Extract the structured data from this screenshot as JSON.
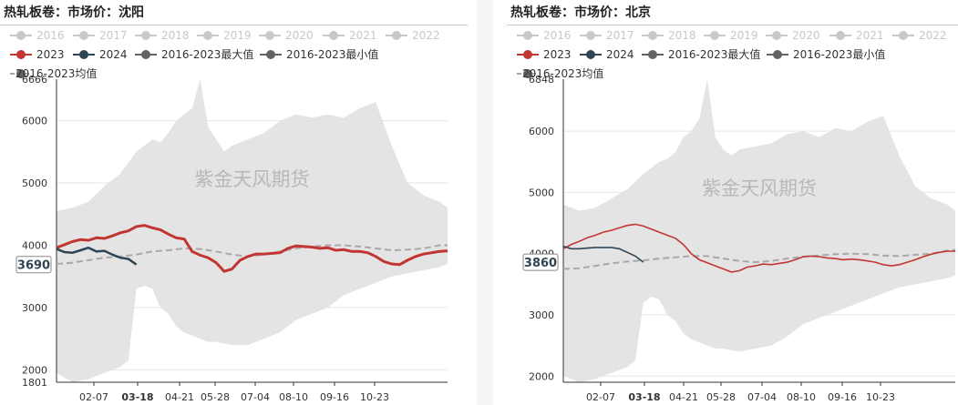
{
  "chart_data": [
    {
      "type": "line",
      "title": "热轧板卷：市场价：沈阳",
      "watermark": "紫金天风期货",
      "ylim": [
        1801,
        6666
      ],
      "y_ticks": [
        "2000",
        "3000",
        "4000",
        "5000",
        "6000"
      ],
      "y_min_label": "1801",
      "y_max_label": "6666",
      "x_ticks": [
        "02-07",
        "03-18",
        "04-21",
        "05-28",
        "07-04",
        "08-10",
        "09-16",
        "10-23"
      ],
      "highlight_x": "03-18",
      "current_value_label": "3690",
      "legend": [
        "2016",
        "2017",
        "2018",
        "2019",
        "2020",
        "2021",
        "2022",
        "2023",
        "2024",
        "2016-2023最大值",
        "2016-2023最小值",
        "2016-2023均值"
      ],
      "colors": {
        "inactive": "#c8c8c8",
        "y2023": "#c23531",
        "y2024": "#2f4554",
        "maxmin": "#636363",
        "band": "#e4e4e4",
        "mean": "#a8a8a8"
      },
      "series": [
        {
          "name": "2023",
          "x": [
            1,
            2,
            3,
            4,
            5,
            6,
            7,
            8,
            9,
            10,
            11,
            12,
            13,
            14,
            15,
            16,
            17,
            18,
            19,
            20,
            21,
            22,
            23,
            24,
            25,
            26,
            27,
            28,
            29,
            30,
            31,
            32,
            33,
            34,
            35,
            36,
            37,
            38,
            39,
            40,
            41,
            42,
            43,
            44,
            45,
            46,
            47,
            48,
            49,
            50
          ],
          "values": [
            3960,
            4010,
            4060,
            4090,
            4080,
            4120,
            4110,
            4150,
            4200,
            4230,
            4300,
            4320,
            4280,
            4250,
            4180,
            4120,
            4100,
            3900,
            3840,
            3800,
            3720,
            3580,
            3620,
            3760,
            3820,
            3860,
            3860,
            3870,
            3880,
            3950,
            3990,
            3980,
            3970,
            3950,
            3960,
            3920,
            3930,
            3900,
            3900,
            3880,
            3820,
            3740,
            3700,
            3690,
            3760,
            3820,
            3860,
            3880,
            3900,
            3910
          ]
        },
        {
          "name": "2024",
          "x": [
            1,
            2,
            3,
            4,
            5,
            6,
            7,
            8,
            9,
            10,
            11
          ],
          "values": [
            3940,
            3890,
            3880,
            3920,
            3960,
            3900,
            3910,
            3850,
            3800,
            3780,
            3690
          ]
        },
        {
          "name": "2016-2023最大值",
          "x": [
            1,
            3,
            5,
            7,
            9,
            11,
            12,
            13,
            14,
            15,
            16,
            17,
            18,
            19,
            20,
            21,
            22,
            23,
            25,
            27,
            29,
            31,
            33,
            35,
            37,
            39,
            41,
            43,
            45,
            47,
            49,
            50
          ],
          "values": [
            4550,
            4600,
            4700,
            4950,
            5150,
            5500,
            5600,
            5700,
            5650,
            5800,
            6000,
            6100,
            6200,
            6666,
            5900,
            5700,
            5500,
            5600,
            5700,
            5800,
            6000,
            6100,
            6050,
            6100,
            6050,
            6200,
            6300,
            5600,
            5000,
            4800,
            4700,
            4600
          ]
        },
        {
          "name": "2016-2023最小值",
          "x": [
            1,
            3,
            5,
            7,
            9,
            10,
            11,
            12,
            13,
            14,
            15,
            16,
            17,
            18,
            19,
            20,
            21,
            23,
            25,
            27,
            29,
            31,
            33,
            35,
            37,
            39,
            41,
            43,
            45,
            47,
            49,
            50
          ],
          "values": [
            1950,
            1801,
            1850,
            1950,
            2050,
            2150,
            3300,
            3350,
            3300,
            3000,
            2900,
            2700,
            2600,
            2550,
            2500,
            2450,
            2450,
            2400,
            2400,
            2500,
            2600,
            2800,
            2900,
            3000,
            3200,
            3300,
            3400,
            3500,
            3550,
            3600,
            3650,
            3700
          ]
        },
        {
          "name": "2016-2023均值",
          "x": [
            1,
            3,
            5,
            7,
            9,
            11,
            13,
            15,
            17,
            19,
            21,
            23,
            25,
            27,
            29,
            31,
            33,
            35,
            37,
            39,
            41,
            43,
            45,
            47,
            49,
            50
          ],
          "values": [
            3700,
            3720,
            3760,
            3800,
            3820,
            3850,
            3900,
            3920,
            3950,
            3940,
            3900,
            3850,
            3820,
            3850,
            3900,
            3950,
            3980,
            4000,
            4000,
            3980,
            3950,
            3920,
            3930,
            3950,
            4000,
            4000
          ]
        }
      ]
    },
    {
      "type": "line",
      "title": "热轧板卷：市场价：北京",
      "watermark": "紫金天风期货",
      "ylim": [
        1900,
        6848
      ],
      "y_ticks": [
        "2000",
        "3000",
        "4000",
        "5000",
        "6000"
      ],
      "y_min_label": "",
      "y_max_label": "6848",
      "x_ticks": [
        "02-07",
        "03-18",
        "04-21",
        "05-28",
        "07-04",
        "08-10",
        "09-16",
        "10-23"
      ],
      "highlight_x": "03-18",
      "current_value_label": "3860",
      "legend": [
        "2016",
        "2017",
        "2018",
        "2019",
        "2020",
        "2021",
        "2022",
        "2023",
        "2024",
        "2016-2023最大值",
        "2016-2023最小值",
        "2016-2023均值"
      ],
      "colors": {
        "inactive": "#c8c8c8",
        "y2023": "#c23531",
        "y2024": "#2f4554",
        "maxmin": "#636363",
        "band": "#e4e4e4",
        "mean": "#a8a8a8"
      },
      "series": [
        {
          "name": "2023",
          "x": [
            1,
            2,
            3,
            4,
            5,
            6,
            7,
            8,
            9,
            10,
            11,
            12,
            13,
            14,
            15,
            16,
            17,
            18,
            19,
            20,
            21,
            22,
            23,
            24,
            25,
            26,
            27,
            28,
            29,
            30,
            31,
            32,
            33,
            34,
            35,
            36,
            37,
            38,
            39,
            40,
            41,
            42,
            43,
            44,
            45,
            46,
            47,
            48,
            49,
            50
          ],
          "values": [
            4080,
            4150,
            4200,
            4260,
            4300,
            4350,
            4380,
            4420,
            4460,
            4480,
            4450,
            4400,
            4350,
            4300,
            4250,
            4150,
            4000,
            3900,
            3850,
            3800,
            3750,
            3700,
            3720,
            3780,
            3800,
            3830,
            3820,
            3840,
            3860,
            3900,
            3950,
            3960,
            3950,
            3930,
            3920,
            3900,
            3910,
            3900,
            3880,
            3860,
            3820,
            3800,
            3820,
            3860,
            3900,
            3950,
            3990,
            4020,
            4040,
            4040
          ]
        },
        {
          "name": "2024",
          "x": [
            1,
            2,
            3,
            4,
            5,
            6,
            7,
            8,
            9,
            10,
            11
          ],
          "values": [
            4120,
            4080,
            4080,
            4090,
            4100,
            4100,
            4100,
            4080,
            4020,
            3960,
            3860
          ]
        },
        {
          "name": "2016-2023最大值",
          "x": [
            1,
            3,
            5,
            7,
            9,
            11,
            12,
            13,
            14,
            15,
            16,
            17,
            18,
            19,
            20,
            21,
            22,
            23,
            25,
            27,
            29,
            31,
            33,
            35,
            37,
            39,
            41,
            43,
            45,
            47,
            49,
            50
          ],
          "values": [
            4800,
            4700,
            4750,
            4900,
            5050,
            5300,
            5400,
            5500,
            5550,
            5650,
            5900,
            6000,
            6200,
            6848,
            5900,
            5700,
            5600,
            5700,
            5750,
            5800,
            5950,
            6000,
            5900,
            6050,
            6000,
            6150,
            6250,
            5600,
            5100,
            4900,
            4800,
            4700
          ]
        },
        {
          "name": "2016-2023最小值",
          "x": [
            1,
            3,
            5,
            7,
            9,
            10,
            11,
            12,
            13,
            14,
            15,
            16,
            17,
            18,
            19,
            20,
            21,
            23,
            25,
            27,
            29,
            31,
            33,
            35,
            37,
            39,
            41,
            43,
            45,
            47,
            49,
            50
          ],
          "values": [
            2000,
            1900,
            1950,
            2050,
            2150,
            2250,
            3200,
            3300,
            3250,
            3000,
            2900,
            2700,
            2600,
            2550,
            2500,
            2450,
            2450,
            2400,
            2450,
            2500,
            2650,
            2850,
            2950,
            3050,
            3150,
            3250,
            3350,
            3450,
            3500,
            3550,
            3600,
            3650
          ]
        },
        {
          "name": "2016-2023均值",
          "x": [
            1,
            3,
            5,
            7,
            9,
            11,
            13,
            15,
            17,
            19,
            21,
            23,
            25,
            27,
            29,
            31,
            33,
            35,
            37,
            39,
            41,
            43,
            45,
            47,
            49,
            50
          ],
          "values": [
            3750,
            3760,
            3800,
            3840,
            3870,
            3890,
            3920,
            3940,
            3960,
            3960,
            3920,
            3880,
            3860,
            3880,
            3920,
            3950,
            3970,
            3990,
            4000,
            3990,
            3970,
            3960,
            3980,
            4000,
            4050,
            4060
          ]
        }
      ]
    }
  ]
}
